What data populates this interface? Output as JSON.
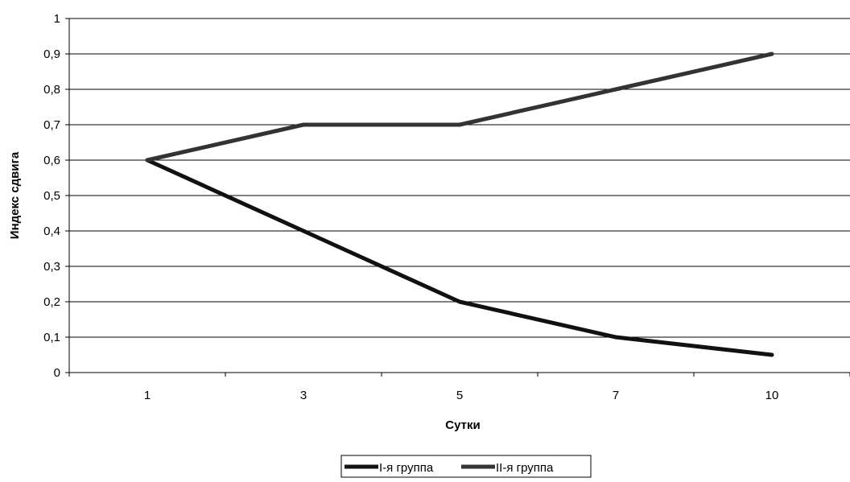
{
  "chart_data": {
    "type": "line",
    "xlabel": "Сутки",
    "ylabel": "Индекс сдвига",
    "categories": [
      "1",
      "3",
      "5",
      "7",
      "10"
    ],
    "yticks": [
      "0",
      "0,1",
      "0,2",
      "0,3",
      "0,4",
      "0,5",
      "0,6",
      "0,7",
      "0,8",
      "0,9",
      "1"
    ],
    "ylim": [
      0,
      1
    ],
    "grid": true,
    "legend_position": "bottom",
    "series": [
      {
        "name": "I-я группа",
        "values": [
          0.6,
          0.4,
          0.2,
          0.1,
          0.05
        ],
        "color": "#111111"
      },
      {
        "name": "II-я группа",
        "values": [
          0.6,
          0.7,
          0.7,
          0.8,
          0.9
        ],
        "color": "#333333"
      }
    ]
  }
}
